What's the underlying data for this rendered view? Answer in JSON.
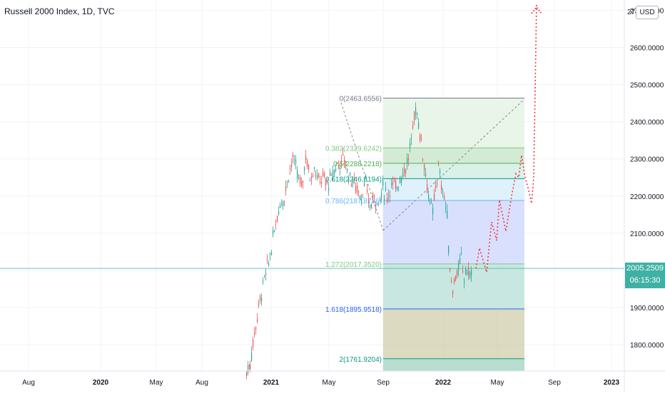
{
  "chart": {
    "title": "Russell 2000 Index, 1D, TVC",
    "currency": "USD",
    "price_tag": {
      "value": "2005.2509",
      "countdown": "06:15:30"
    },
    "colors": {
      "up": "#26a69a",
      "down": "#ef5350",
      "last_price": "#3fb1a4",
      "projection": "#f23645"
    }
  },
  "chart_data": {
    "type": "candlestick",
    "x_axis_labels": [
      "Aug",
      "2020",
      "May",
      "Aug",
      "2021",
      "May",
      "Sep",
      "2022",
      "May",
      "Sep",
      "2023"
    ],
    "y_axis": {
      "range": [
        1730,
        2720
      ],
      "tick_labels": [
        "2700.0000",
        "2600.0000",
        "2500.0000",
        "2400.0000",
        "2300.0000",
        "2200.0000",
        "2100.0000",
        "2000.0000",
        "1900.0000",
        "1800.0000"
      ],
      "top_label_partial": "27"
    },
    "last_price": 2005.2509,
    "fibonacci_extension": {
      "levels": [
        {
          "ratio": "0",
          "price": 2463.6556,
          "label": "0(2463.6556)",
          "color": "#787b86"
        },
        {
          "ratio": "0.382",
          "price": 2329.6242,
          "label": "0.382(2329.6242)",
          "color": "#81c784"
        },
        {
          "ratio": "0.5",
          "price": 2288.2218,
          "label": "0.5(2288.2218)",
          "color": "#4caf50"
        },
        {
          "ratio": "0.618",
          "price": 2246.8194,
          "label": "0.618(2246.8194)",
          "color": "#089981"
        },
        {
          "ratio": "0.786",
          "price": 2187.8736,
          "label": "0.786(2187.8736)",
          "color": "#64b5f6"
        },
        {
          "ratio": "1.272",
          "price": 2017.352,
          "label": "1.272(2017.3520)",
          "color": "#81c784"
        },
        {
          "ratio": "1.618",
          "price": 1895.9518,
          "label": "1.618(1895.9518)",
          "color": "#2962ff"
        },
        {
          "ratio": "2",
          "price": 1761.9204,
          "label": "2(1761.9204)",
          "color": "#089981"
        }
      ]
    },
    "projection_path_prices": [
      2005,
      2060,
      1995,
      2130,
      2080,
      2190,
      2105,
      2200,
      2260,
      2250,
      2310,
      2250,
      2215,
      2180,
      2250,
      2720
    ]
  }
}
